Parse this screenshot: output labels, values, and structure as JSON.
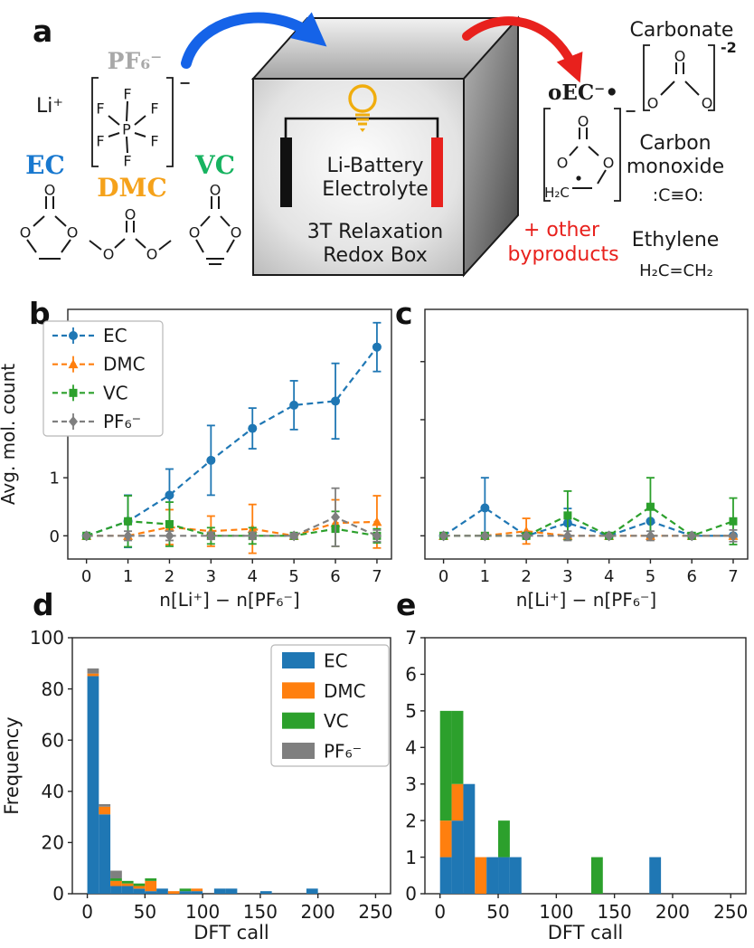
{
  "letters": {
    "a": "a",
    "b": "b",
    "c": "c",
    "d": "d",
    "e": "e"
  },
  "panel_a": {
    "labels": {
      "pf6": {
        "text": "PF₆⁻",
        "color": "#a8a8a8"
      },
      "li": {
        "text": "Li⁺",
        "color": "#1a1a1a"
      },
      "ec": {
        "text": "EC",
        "color": "#1878cf"
      },
      "dmc": {
        "text": "DMC",
        "color": "#f5a21b"
      },
      "vc": {
        "text": "VC",
        "color": "#17b360"
      }
    },
    "box": {
      "lines": [
        "Li-Battery",
        "Electrolyte",
        "3T Relaxation",
        "Redox Box"
      ],
      "electrode_left_color": "#111111",
      "electrode_right_color": "#e8211d",
      "bulb_color": "#f0ad0e",
      "text_color": "#1a1a1a"
    },
    "arrows": {
      "in_color": "#1563e8",
      "out_color": "#e8211d"
    },
    "products": {
      "oec_label": "oEC⁻•",
      "carbonate_label": "Carbonate",
      "carbonate_charge": "-2",
      "co_label1": "Carbon",
      "co_label2": "monoxide",
      "co_formula": ":C≡O:",
      "ethylene_label": "Ethylene",
      "ethylene_formula": "H₂C=CH₂",
      "byproducts1": "+ other",
      "byproducts2": "byproducts",
      "byproducts_color": "#e8211d"
    },
    "structures": {
      "pf6": {
        "atoms": [
          [
            "P",
            140,
            143
          ],
          [
            "F",
            141,
            104
          ],
          [
            "F",
            141,
            178
          ],
          [
            "F",
            111,
            120
          ],
          [
            "F",
            171,
            120
          ],
          [
            "F",
            111,
            156
          ],
          [
            "F",
            171,
            156
          ]
        ],
        "bonds": [
          [
            140,
            134,
            141,
            112
          ],
          [
            140,
            151,
            141,
            169
          ],
          [
            132,
            138,
            120,
            128
          ],
          [
            149,
            138,
            161,
            128
          ],
          [
            132,
            147,
            120,
            151
          ],
          [
            149,
            147,
            161,
            151
          ]
        ],
        "bracket": [
          102,
          86,
          191,
          184
        ],
        "charge": [
          "−",
          198,
          97
        ]
      },
      "ec": {
        "atoms": [
          [
            "O",
            55,
            210
          ],
          [
            "O",
            28,
            257
          ],
          [
            "O",
            80,
            257
          ]
        ],
        "bonds": [
          [
            51,
            217,
            51,
            231
          ],
          [
            59,
            217,
            59,
            231
          ],
          [
            49,
            239,
            37,
            250
          ],
          [
            61,
            239,
            73,
            250
          ],
          [
            30,
            265,
            40,
            279
          ],
          [
            78,
            265,
            68,
            279
          ],
          [
            43,
            286,
            67,
            286
          ]
        ]
      },
      "dmc": {
        "atoms": [
          [
            "O",
            144,
            237
          ],
          [
            "O",
            120,
            281
          ],
          [
            "O",
            168,
            281
          ]
        ],
        "bonds": [
          [
            140,
            244,
            140,
            257
          ],
          [
            148,
            244,
            148,
            257
          ],
          [
            138,
            264,
            127,
            274
          ],
          [
            150,
            264,
            161,
            274
          ],
          [
            112,
            276,
            99,
            266
          ],
          [
            176,
            276,
            189,
            266
          ]
        ]
      },
      "vc": {
        "atoms": [
          [
            "O",
            238,
            210
          ],
          [
            "O",
            215,
            257
          ],
          [
            "O",
            261,
            257
          ]
        ],
        "bonds": [
          [
            234,
            217,
            234,
            231
          ],
          [
            242,
            217,
            242,
            231
          ],
          [
            232,
            239,
            222,
            250
          ],
          [
            244,
            239,
            254,
            250
          ],
          [
            217,
            265,
            225,
            279
          ],
          [
            259,
            265,
            251,
            279
          ],
          [
            228,
            286,
            248,
            286
          ],
          [
            231,
            292,
            245,
            292
          ]
        ]
      },
      "carbonate": {
        "atoms": [
          [
            "O",
            752,
            62
          ],
          [
            "O",
            722,
            114
          ],
          [
            "O",
            782,
            114
          ]
        ],
        "bonds": [
          [
            748,
            69,
            748,
            82
          ],
          [
            756,
            69,
            756,
            82
          ],
          [
            746,
            90,
            731,
            105
          ],
          [
            758,
            90,
            773,
            105
          ]
        ],
        "bracket": [
          712,
          50,
          790,
          122
        ],
        "charge": [
          "-2",
          797,
          58
        ]
      },
      "oec": {
        "atoms": [
          [
            "O",
            645,
            134
          ],
          [
            "O",
            622,
            180
          ],
          [
            "O",
            673,
            180
          ]
        ],
        "bonds": [
          [
            641,
            141,
            641,
            154
          ],
          [
            649,
            141,
            649,
            154
          ],
          [
            639,
            162,
            630,
            172
          ],
          [
            651,
            162,
            662,
            172
          ],
          [
            670,
            188,
            661,
            203
          ],
          [
            655,
            208,
            633,
            208
          ]
        ],
        "bracket": [
          602,
          120,
          686,
          222
        ],
        "charge": [
          "−",
          691,
          128
        ],
        "dot": [
          640,
          197
        ],
        "extra_label": [
          "H₂C",
          616,
          213
        ]
      }
    }
  },
  "chart_data": [
    {
      "panel_letter": "b",
      "type": "line",
      "xlabel": "n[Li⁺] − n[PF₆⁻]",
      "ylabel": "Avg. mol. count",
      "x": [
        0,
        1,
        2,
        3,
        4,
        5,
        6,
        7
      ],
      "xticks": [
        0,
        1,
        2,
        3,
        4,
        5,
        6,
        7
      ],
      "yticks": [
        0,
        1,
        2,
        3
      ],
      "xlim": [
        -0.45,
        7.35
      ],
      "ylim": [
        -0.4,
        3.9
      ],
      "show_ytick_labels": true,
      "legend": true,
      "legend_pos": "upper left",
      "grid": false,
      "series": [
        {
          "name": "EC",
          "color": "#1f77b4",
          "marker": "circle",
          "y": [
            0,
            0.25,
            0.7,
            1.3,
            1.85,
            2.25,
            2.32,
            3.25
          ],
          "yerr": [
            0,
            0.45,
            0.45,
            0.6,
            0.35,
            0.42,
            0.65,
            0.42
          ]
        },
        {
          "name": "DMC",
          "color": "#ff7f0e",
          "marker": "triangle",
          "y": [
            0,
            0,
            0.15,
            0.08,
            0.12,
            0,
            0.22,
            0.24
          ],
          "yerr": [
            0,
            0,
            0.3,
            0.26,
            0.42,
            0,
            0.4,
            0.45
          ]
        },
        {
          "name": "VC",
          "color": "#2ca02c",
          "marker": "square",
          "y": [
            0,
            0.25,
            0.2,
            0,
            0,
            0,
            0.12,
            0
          ],
          "yerr": [
            0,
            0.44,
            0.38,
            0.14,
            0.14,
            0,
            0.3,
            0.12
          ]
        },
        {
          "name": "PF₆⁻",
          "color": "#7f7f7f",
          "marker": "diamond",
          "y": [
            0,
            0,
            0,
            0,
            0,
            0,
            0.32,
            0
          ],
          "yerr": [
            0,
            0.08,
            0.08,
            0.06,
            0.06,
            0.04,
            0.5,
            0.1
          ]
        }
      ]
    },
    {
      "panel_letter": "c",
      "type": "line",
      "xlabel": "n[Li⁺] − n[PF₆⁻]",
      "ylabel": "",
      "x": [
        0,
        1,
        2,
        3,
        4,
        5,
        6,
        7
      ],
      "xticks": [
        0,
        1,
        2,
        3,
        4,
        5,
        6,
        7
      ],
      "yticks": [
        0,
        1,
        2,
        3
      ],
      "xlim": [
        -0.45,
        7.35
      ],
      "ylim": [
        -0.4,
        3.9
      ],
      "show_ytick_labels": false,
      "legend": false,
      "grid": false,
      "series": [
        {
          "name": "EC",
          "color": "#1f77b4",
          "marker": "circle",
          "y": [
            0,
            0.48,
            0,
            0.22,
            0,
            0.25,
            0,
            0
          ],
          "yerr": [
            0,
            0.52,
            0,
            0.25,
            0,
            0.28,
            0,
            0
          ]
        },
        {
          "name": "DMC",
          "color": "#ff7f0e",
          "marker": "triangle",
          "y": [
            0,
            0,
            0.08,
            0,
            0,
            0,
            0,
            0
          ],
          "yerr": [
            0,
            0,
            0.22,
            0,
            0,
            0,
            0,
            0
          ]
        },
        {
          "name": "VC",
          "color": "#2ca02c",
          "marker": "square",
          "y": [
            0,
            0,
            0,
            0.35,
            0,
            0.5,
            0,
            0.25
          ],
          "yerr": [
            0,
            0,
            0,
            0.42,
            0,
            0.5,
            0,
            0.4
          ]
        },
        {
          "name": "PF₆⁻",
          "color": "#7f7f7f",
          "marker": "diamond",
          "y": [
            0,
            0,
            0,
            0,
            0,
            0,
            0,
            0
          ],
          "yerr": [
            0,
            0,
            0,
            0.08,
            0,
            0.08,
            0,
            0.1
          ]
        }
      ]
    },
    {
      "panel_letter": "d",
      "type": "histogram",
      "xlabel": "DFT call",
      "ylabel": "Frequency",
      "bin_width": 10,
      "bin_starts": [
        0,
        10,
        20,
        30,
        40,
        50,
        60,
        70,
        80,
        90,
        110,
        120,
        150,
        190
      ],
      "xticks": [
        0,
        50,
        100,
        150,
        200,
        250
      ],
      "yticks": [
        0,
        20,
        40,
        60,
        80,
        100
      ],
      "xlim": [
        -13,
        263
      ],
      "ylim": [
        0,
        100
      ],
      "show_ytick_labels": true,
      "legend": true,
      "legend_pos": "upper right",
      "grid": false,
      "series": [
        {
          "name": "EC",
          "color": "#1f77b4",
          "values": [
            85,
            31,
            3,
            3,
            2,
            1,
            2,
            0,
            1,
            1,
            2,
            2,
            1,
            2
          ]
        },
        {
          "name": "DMC",
          "color": "#ff7f0e",
          "values": [
            1,
            3,
            2,
            1,
            1,
            4,
            0,
            1,
            0,
            1,
            0,
            0,
            0,
            0
          ]
        },
        {
          "name": "VC",
          "color": "#2ca02c",
          "values": [
            0,
            0,
            1,
            1,
            1,
            1,
            0,
            0,
            1,
            0,
            0,
            0,
            0,
            0
          ]
        },
        {
          "name": "PF₆⁻",
          "color": "#7f7f7f",
          "values": [
            2,
            1,
            3,
            0,
            0,
            0,
            0,
            0,
            0,
            0,
            0,
            0,
            0,
            0
          ]
        }
      ]
    },
    {
      "panel_letter": "e",
      "type": "histogram",
      "xlabel": "DFT call",
      "ylabel": "",
      "bin_width": 10,
      "bin_starts": [
        0,
        10,
        20,
        30,
        40,
        50,
        60,
        130,
        180
      ],
      "xticks": [
        0,
        50,
        100,
        150,
        200,
        250
      ],
      "yticks": [
        0,
        1,
        2,
        3,
        4,
        5,
        6,
        7
      ],
      "xlim": [
        -13,
        263
      ],
      "ylim": [
        0,
        7
      ],
      "show_ytick_labels": true,
      "legend": false,
      "grid": false,
      "series": [
        {
          "name": "EC",
          "color": "#1f77b4",
          "values": [
            1,
            2,
            3,
            0,
            1,
            1,
            1,
            0,
            1
          ]
        },
        {
          "name": "DMC",
          "color": "#ff7f0e",
          "values": [
            1,
            1,
            0,
            1,
            0,
            0,
            0,
            0,
            0
          ]
        },
        {
          "name": "VC",
          "color": "#2ca02c",
          "values": [
            3,
            2,
            0,
            0,
            0,
            1,
            0,
            1,
            0
          ]
        }
      ]
    }
  ]
}
